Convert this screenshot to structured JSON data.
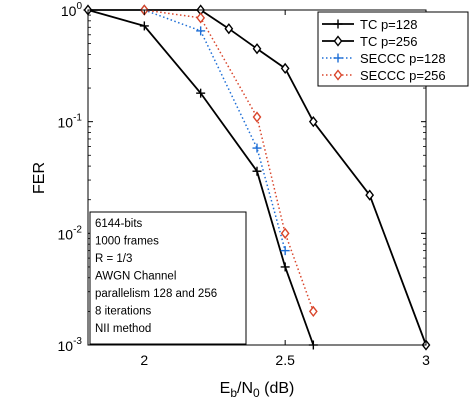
{
  "chart_data": {
    "type": "line",
    "xlabel": {
      "base": "E",
      "sub1": "b",
      "mid": "/N",
      "sub2": "0",
      "tail": " (dB)"
    },
    "ylabel": "FER",
    "xlim": [
      1.8,
      3.0
    ],
    "ylim": [
      0.001,
      1
    ],
    "yscale": "log",
    "grid": false,
    "x_ticks": [
      {
        "value": 2,
        "label": "2"
      },
      {
        "value": 2.5,
        "label": "2.5"
      },
      {
        "value": 3,
        "label": "3"
      }
    ],
    "y_ticks": [
      {
        "value": 1,
        "base": "10",
        "exp": "0"
      },
      {
        "value": 0.1,
        "base": "10",
        "exp": "-1"
      },
      {
        "value": 0.01,
        "base": "10",
        "exp": "-2"
      },
      {
        "value": 0.001,
        "base": "10",
        "exp": "-3"
      }
    ],
    "legend_position": "top-right",
    "series": [
      {
        "name": "TC p=128",
        "color": "#000000",
        "line": "solid",
        "marker": "plus",
        "x": [
          1.8,
          2.0,
          2.2,
          2.4,
          2.5,
          2.6
        ],
        "y": [
          1.0,
          0.72,
          0.18,
          0.036,
          0.005,
          0.001
        ]
      },
      {
        "name": "TC p=256",
        "color": "#000000",
        "line": "solid",
        "marker": "diamond",
        "x": [
          1.8,
          2.0,
          2.2,
          2.3,
          2.4,
          2.5,
          2.6,
          2.8,
          3.0
        ],
        "y": [
          1.0,
          1.0,
          1.0,
          0.68,
          0.45,
          0.3,
          0.1,
          0.022,
          0.001
        ]
      },
      {
        "name": "SECCC p=128",
        "color": "#1f6fd6",
        "line": "dotted",
        "marker": "plus",
        "x": [
          2.0,
          2.2,
          2.4,
          2.5
        ],
        "y": [
          1.0,
          0.65,
          0.058,
          0.007
        ]
      },
      {
        "name": "SECCC p=256",
        "color": "#d9452b",
        "line": "dotted",
        "marker": "diamond",
        "x": [
          2.0,
          2.2,
          2.4,
          2.5,
          2.6
        ],
        "y": [
          1.0,
          0.85,
          0.11,
          0.01,
          0.002
        ]
      }
    ],
    "annotation": {
      "lines": [
        "6144-bits",
        "1000 frames",
        "R = 1/3",
        "AWGN Channel",
        "parallelism 128 and 256",
        "8 iterations",
        "NII method"
      ]
    }
  }
}
